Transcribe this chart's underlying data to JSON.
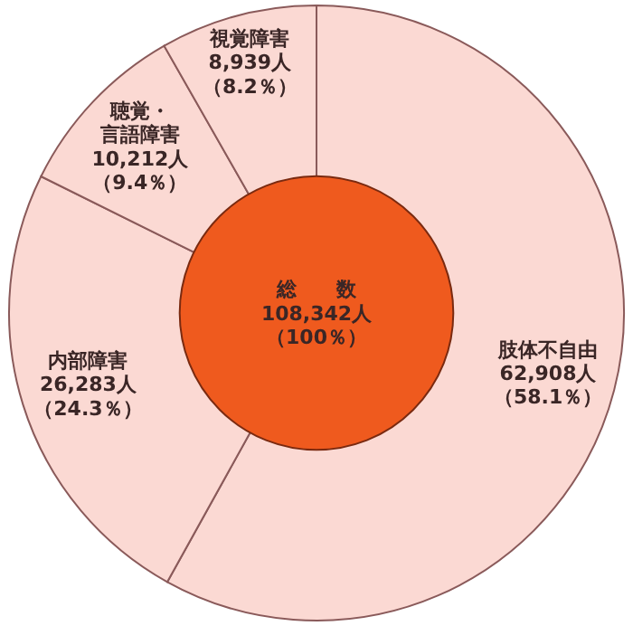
{
  "chart_data": {
    "type": "donut",
    "categories": [
      "肢体不自由",
      "内部障害",
      "聴覚・言語障害",
      "視覚障害"
    ],
    "values": [
      62908,
      26283,
      10212,
      8939
    ],
    "value_labels": [
      "62,908人（58.1％）",
      "26,283人（24.3％）",
      "10,212人（9.4％）",
      "8,939人（8.2％）"
    ],
    "colors": [
      "#fbd9d3",
      "#fbd9d3",
      "#fbd9d3",
      "#fbd9d3"
    ],
    "annotations": [
      "総　　数108,342人（100％）"
    ]
  }
}
